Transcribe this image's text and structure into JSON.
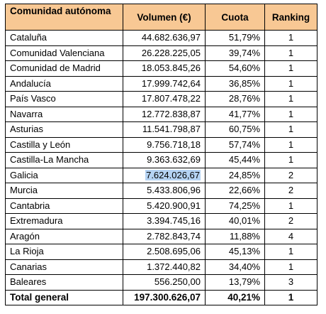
{
  "table": {
    "headers": {
      "region": "Comunidad autónoma",
      "volume": "Volumen (€)",
      "share": "Cuota",
      "rank": "Ranking"
    },
    "rows": [
      {
        "region": "Cataluña",
        "volume": "44.682.636,97",
        "share": "51,79%",
        "rank": "1"
      },
      {
        "region": "Comunidad Valenciana",
        "volume": "26.228.225,05",
        "share": "39,74%",
        "rank": "1"
      },
      {
        "region": "Comunidad de Madrid",
        "volume": "18.053.845,26",
        "share": "54,60%",
        "rank": "1"
      },
      {
        "region": "Andalucía",
        "volume": "17.999.742,64",
        "share": "36,85%",
        "rank": "1"
      },
      {
        "region": "País Vasco",
        "volume": "17.807.478,22",
        "share": "28,76%",
        "rank": "1"
      },
      {
        "region": "Navarra",
        "volume": "12.772.838,87",
        "share": "41,77%",
        "rank": "1"
      },
      {
        "region": "Asturias",
        "volume": "11.541.798,87",
        "share": "60,75%",
        "rank": "1"
      },
      {
        "region": "Castilla y León",
        "volume": "9.756.718,18",
        "share": "57,74%",
        "rank": "1"
      },
      {
        "region": "Castilla-La Mancha",
        "volume": "9.363.632,69",
        "share": "45,44%",
        "rank": "1"
      },
      {
        "region": "Galicia",
        "volume": "7.624.026,67",
        "share": "24,85%",
        "rank": "2"
      },
      {
        "region": "Murcia",
        "volume": "5.433.806,96",
        "share": "22,66%",
        "rank": "2"
      },
      {
        "region": "Cantabria",
        "volume": "5.420.900,91",
        "share": "74,25%",
        "rank": "1"
      },
      {
        "region": "Extremadura",
        "volume": "3.394.745,16",
        "share": "40,01%",
        "rank": "2"
      },
      {
        "region": "Aragón",
        "volume": "2.782.843,74",
        "share": "11,88%",
        "rank": "4"
      },
      {
        "region": "La Rioja",
        "volume": "2.508.695,06",
        "share": "45,13%",
        "rank": "1"
      },
      {
        "region": "Canarias",
        "volume": "1.372.440,82",
        "share": "34,40%",
        "rank": "1"
      },
      {
        "region": "Baleares",
        "volume": "556.250,00",
        "share": "13,79%",
        "rank": "3"
      }
    ],
    "total": {
      "region": "Total general",
      "volume": "197.300.626,07",
      "share": "40,21%",
      "rank": "1"
    }
  },
  "colors": {
    "header_background": "#f8c894",
    "selection_highlight": "#b5d3f3"
  },
  "selection": {
    "row_index": 9,
    "column": "volume"
  }
}
